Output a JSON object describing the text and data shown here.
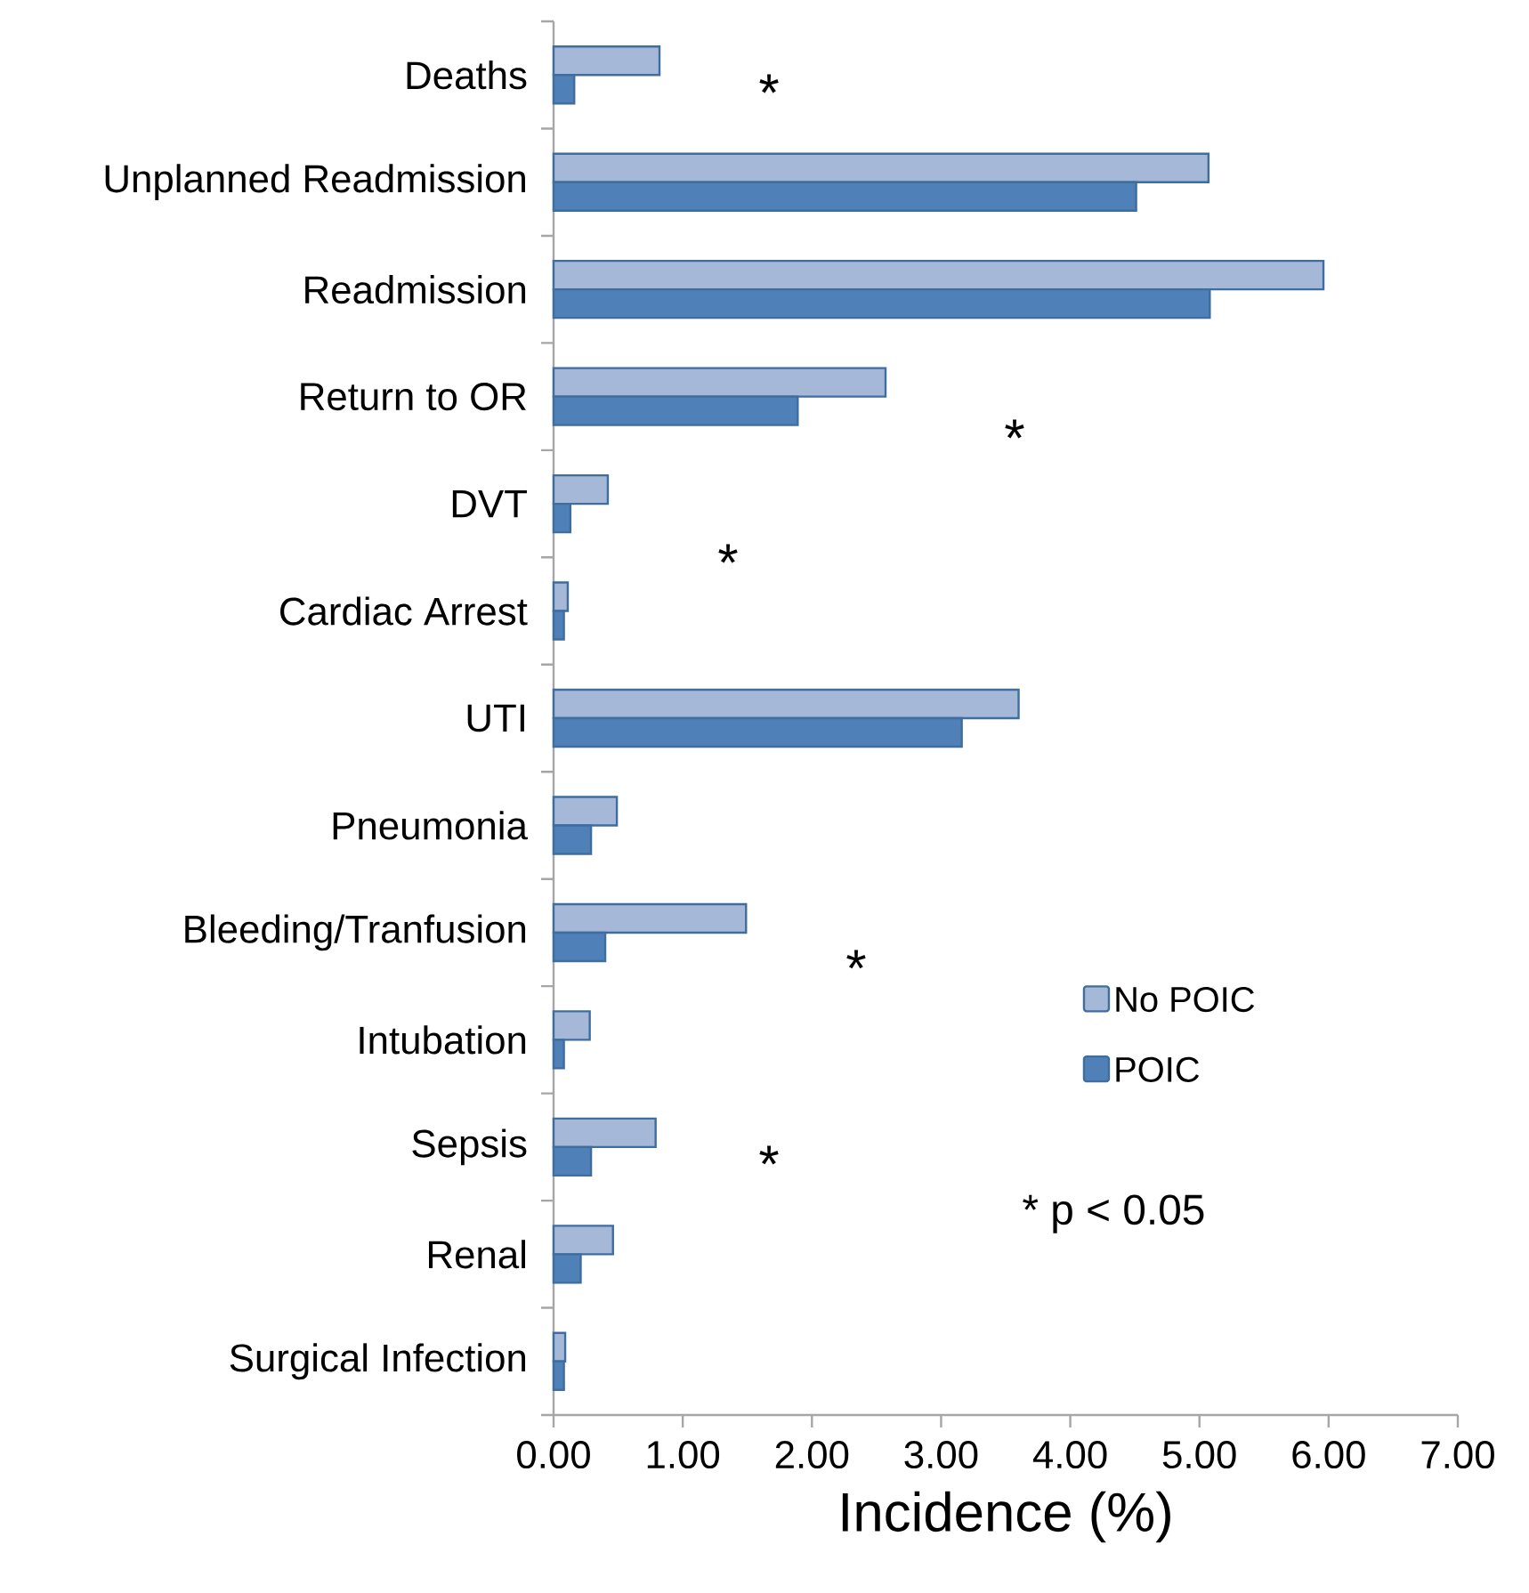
{
  "chart_data": {
    "type": "bar",
    "orientation": "horizontal",
    "xlabel": "Incidence (%)",
    "categories": [
      "Deaths",
      "Unplanned Readmission",
      "Readmission",
      "Return to OR",
      "DVT",
      "Cardiac Arrest",
      "UTI",
      "Pneumonia",
      "Bleeding/Tranfusion",
      "Intubation",
      "Sepsis",
      "Renal",
      "Surgical Infection"
    ],
    "series": [
      {
        "name": "No POIC",
        "color": "#a5b8d8",
        "values": [
          0.82,
          5.07,
          5.96,
          2.57,
          0.42,
          0.11,
          3.6,
          0.49,
          1.49,
          0.28,
          0.79,
          0.46,
          0.09
        ]
      },
      {
        "name": "POIC",
        "color": "#4f81b8",
        "values": [
          0.16,
          4.51,
          5.08,
          1.89,
          0.13,
          0.08,
          3.16,
          0.29,
          0.4,
          0.08,
          0.29,
          0.21,
          0.08
        ]
      }
    ],
    "xlim": [
      0,
      7
    ],
    "xticks": [
      {
        "value": 0,
        "label": "0.00"
      },
      {
        "value": 1,
        "label": "1.00"
      },
      {
        "value": 2,
        "label": "2.00"
      },
      {
        "value": 3,
        "label": "3.00"
      },
      {
        "value": 4,
        "label": "4.00"
      },
      {
        "value": 5,
        "label": "5.00"
      },
      {
        "value": 6,
        "label": "6.00"
      },
      {
        "value": 7,
        "label": "7.00"
      }
    ],
    "legend": "right",
    "grid": false,
    "annotations": [
      "*",
      "*",
      "*",
      "*",
      "*",
      "* p < 0.05"
    ]
  }
}
